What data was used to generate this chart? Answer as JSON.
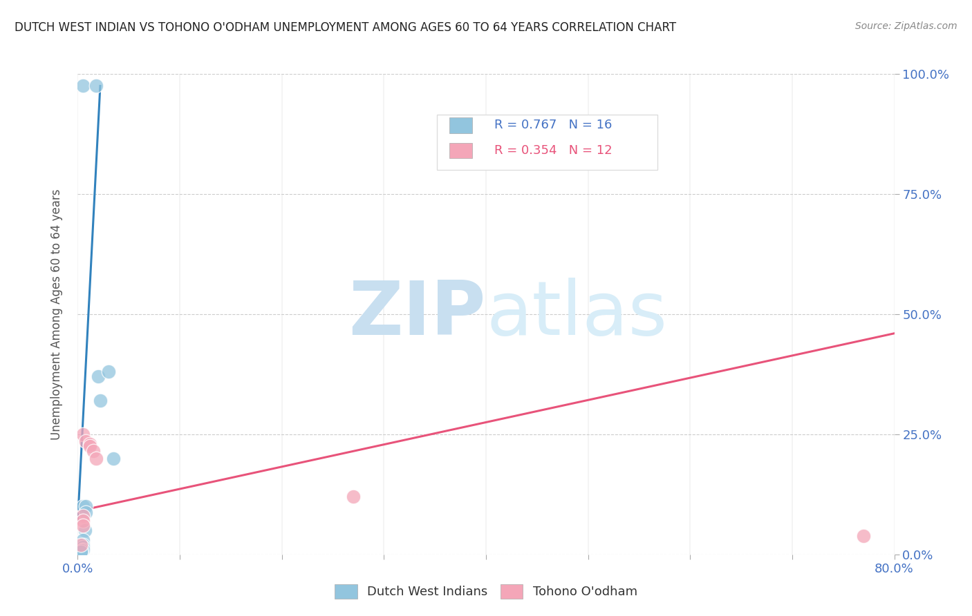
{
  "title": "DUTCH WEST INDIAN VS TOHONO O'ODHAM UNEMPLOYMENT AMONG AGES 60 TO 64 YEARS CORRELATION CHART",
  "source": "Source: ZipAtlas.com",
  "ylabel_label": "Unemployment Among Ages 60 to 64 years",
  "xlim": [
    0.0,
    0.8
  ],
  "ylim": [
    0.0,
    1.0
  ],
  "legend_blue_R": "0.767",
  "legend_blue_N": "16",
  "legend_pink_R": "0.354",
  "legend_pink_N": "12",
  "blue_color": "#92c5de",
  "pink_color": "#f4a6b8",
  "blue_line_color": "#3182bd",
  "pink_line_color": "#e8537a",
  "tick_label_color": "#4472c4",
  "blue_scatter": [
    [
      0.005,
      0.975
    ],
    [
      0.018,
      0.975
    ],
    [
      0.02,
      0.37
    ],
    [
      0.022,
      0.32
    ],
    [
      0.03,
      0.38
    ],
    [
      0.035,
      0.2
    ],
    [
      0.005,
      0.1
    ],
    [
      0.008,
      0.1
    ],
    [
      0.008,
      0.088
    ],
    [
      0.007,
      0.05
    ],
    [
      0.005,
      0.03
    ],
    [
      0.005,
      0.02
    ],
    [
      0.005,
      0.015
    ],
    [
      0.005,
      0.01
    ],
    [
      0.004,
      0.008
    ],
    [
      0.003,
      0.005
    ]
  ],
  "pink_scatter": [
    [
      0.005,
      0.25
    ],
    [
      0.008,
      0.235
    ],
    [
      0.012,
      0.23
    ],
    [
      0.012,
      0.225
    ],
    [
      0.015,
      0.215
    ],
    [
      0.018,
      0.2
    ],
    [
      0.005,
      0.08
    ],
    [
      0.005,
      0.07
    ],
    [
      0.005,
      0.06
    ],
    [
      0.27,
      0.12
    ],
    [
      0.77,
      0.038
    ],
    [
      0.003,
      0.02
    ]
  ],
  "blue_line_x": [
    0.0,
    0.022
  ],
  "blue_line_y": [
    0.07,
    0.975
  ],
  "pink_line_x": [
    0.0,
    0.8
  ],
  "pink_line_y": [
    0.09,
    0.46
  ],
  "watermark_zip": "ZIP",
  "watermark_atlas": "atlas",
  "watermark_color": "#c8dff0",
  "background_color": "#ffffff",
  "grid_color": "#cccccc",
  "x_ticks": [
    0.0,
    0.1,
    0.2,
    0.3,
    0.4,
    0.5,
    0.6,
    0.7,
    0.8
  ],
  "y_ticks": [
    0.0,
    0.25,
    0.5,
    0.75,
    1.0
  ]
}
